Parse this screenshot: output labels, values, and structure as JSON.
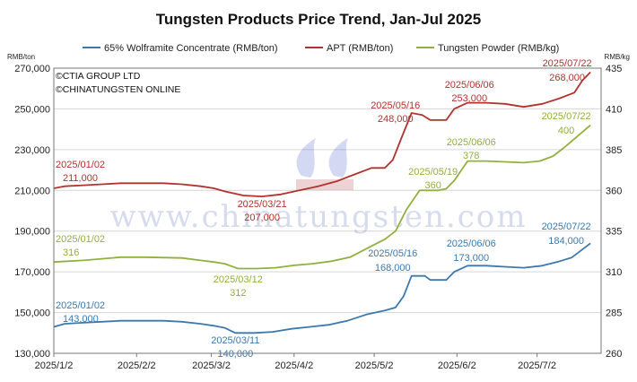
{
  "title": "Tungsten Products Price Trend, Jan-Jul 2025",
  "copyright": [
    "©CTIA GROUP LTD",
    "©CHINATUNGSTEN ONLINE"
  ],
  "watermark": "www.chinatungsten.com",
  "colors": {
    "wolframite": "#3d78ad",
    "apt": "#b2322f",
    "powder": "#92b03f",
    "grid": "#d6d6d6",
    "axis": "#777777"
  },
  "chart_data": {
    "type": "line",
    "title": "Tungsten Products Price Trend, Jan-Jul 2025",
    "x_ticks": [
      "2025/1/2",
      "2025/2/2",
      "2025/3/2",
      "2025/4/2",
      "2025/5/2",
      "2025/6/2",
      "2025/7/2"
    ],
    "y_left": {
      "unit": "RMB/ton",
      "lim": [
        130000,
        270000
      ],
      "ticks": [
        130000,
        150000,
        170000,
        190000,
        210000,
        230000,
        250000,
        270000
      ],
      "tick_labels": [
        "130,000",
        "150,000",
        "170,000",
        "190,000",
        "210,000",
        "230,000",
        "250,000",
        "270,000"
      ]
    },
    "y_right": {
      "unit": "RMB/kg",
      "lim": [
        260,
        435
      ],
      "ticks": [
        260,
        285,
        310,
        335,
        360,
        385,
        410,
        435
      ],
      "tick_labels": [
        "260",
        "285",
        "310",
        "335",
        "360",
        "385",
        "410",
        "435"
      ]
    },
    "legend": "top",
    "series": [
      {
        "name": "65% Wolframite Concentrate (RMB/ton)",
        "axis": "left",
        "color": "#3d78ad",
        "points": [
          [
            "2025/01/02",
            143000
          ],
          [
            "2025/01/06",
            144500
          ],
          [
            "2025/01/13",
            145000
          ],
          [
            "2025/01/20",
            145500
          ],
          [
            "2025/01/27",
            146000
          ],
          [
            "2025/02/05",
            146000
          ],
          [
            "2025/02/12",
            146000
          ],
          [
            "2025/02/19",
            145500
          ],
          [
            "2025/02/26",
            144500
          ],
          [
            "2025/03/03",
            143500
          ],
          [
            "2025/03/07",
            142500
          ],
          [
            "2025/03/11",
            140000
          ],
          [
            "2025/03/18",
            140000
          ],
          [
            "2025/03/25",
            140500
          ],
          [
            "2025/04/01",
            142000
          ],
          [
            "2025/04/08",
            143000
          ],
          [
            "2025/04/15",
            144000
          ],
          [
            "2025/04/22",
            146000
          ],
          [
            "2025/04/29",
            149000
          ],
          [
            "2025/05/06",
            151000
          ],
          [
            "2025/05/10",
            152500
          ],
          [
            "2025/05/13",
            158000
          ],
          [
            "2025/05/16",
            168000
          ],
          [
            "2025/05/21",
            168000
          ],
          [
            "2025/05/23",
            166000
          ],
          [
            "2025/05/29",
            166000
          ],
          [
            "2025/06/01",
            170000
          ],
          [
            "2025/06/06",
            173000
          ],
          [
            "2025/06/13",
            173000
          ],
          [
            "2025/06/20",
            172500
          ],
          [
            "2025/06/27",
            172000
          ],
          [
            "2025/07/04",
            173000
          ],
          [
            "2025/07/10",
            175000
          ],
          [
            "2025/07/15",
            177000
          ],
          [
            "2025/07/22",
            184000
          ]
        ]
      },
      {
        "name": "APT (RMB/ton)",
        "axis": "left",
        "color": "#b2322f",
        "points": [
          [
            "2025/01/02",
            211000
          ],
          [
            "2025/01/06",
            212000
          ],
          [
            "2025/01/13",
            212500
          ],
          [
            "2025/01/20",
            213000
          ],
          [
            "2025/01/27",
            213500
          ],
          [
            "2025/02/05",
            213500
          ],
          [
            "2025/02/12",
            213500
          ],
          [
            "2025/02/19",
            213000
          ],
          [
            "2025/02/26",
            212000
          ],
          [
            "2025/03/03",
            211000
          ],
          [
            "2025/03/07",
            209500
          ],
          [
            "2025/03/14",
            207500
          ],
          [
            "2025/03/21",
            207000
          ],
          [
            "2025/03/28",
            208000
          ],
          [
            "2025/04/04",
            210000
          ],
          [
            "2025/04/11",
            212000
          ],
          [
            "2025/04/18",
            214500
          ],
          [
            "2025/04/25",
            218000
          ],
          [
            "2025/05/01",
            221000
          ],
          [
            "2025/05/06",
            221000
          ],
          [
            "2025/05/09",
            225000
          ],
          [
            "2025/05/12",
            235000
          ],
          [
            "2025/05/16",
            248000
          ],
          [
            "2025/05/20",
            247000
          ],
          [
            "2025/05/23",
            244500
          ],
          [
            "2025/05/29",
            244500
          ],
          [
            "2025/06/01",
            250000
          ],
          [
            "2025/06/06",
            253000
          ],
          [
            "2025/06/13",
            253000
          ],
          [
            "2025/06/20",
            252500
          ],
          [
            "2025/06/27",
            251000
          ],
          [
            "2025/07/04",
            252500
          ],
          [
            "2025/07/10",
            255000
          ],
          [
            "2025/07/16",
            258000
          ],
          [
            "2025/07/19",
            264000
          ],
          [
            "2025/07/22",
            268000
          ]
        ]
      },
      {
        "name": "Tungsten Powder (RMB/kg)",
        "axis": "right",
        "color": "#92b03f",
        "points": [
          [
            "2025/01/02",
            316
          ],
          [
            "2025/01/13",
            317
          ],
          [
            "2025/01/20",
            318
          ],
          [
            "2025/01/27",
            319
          ],
          [
            "2025/02/05",
            319
          ],
          [
            "2025/02/19",
            318.5
          ],
          [
            "2025/02/26",
            317
          ],
          [
            "2025/03/03",
            316
          ],
          [
            "2025/03/07",
            315
          ],
          [
            "2025/03/12",
            312
          ],
          [
            "2025/03/19",
            312
          ],
          [
            "2025/03/26",
            312.5
          ],
          [
            "2025/04/02",
            314
          ],
          [
            "2025/04/09",
            315
          ],
          [
            "2025/04/16",
            316.5
          ],
          [
            "2025/04/23",
            319
          ],
          [
            "2025/04/30",
            325
          ],
          [
            "2025/05/06",
            330
          ],
          [
            "2025/05/10",
            335
          ],
          [
            "2025/05/14",
            348
          ],
          [
            "2025/05/19",
            360
          ],
          [
            "2025/05/26",
            360
          ],
          [
            "2025/05/29",
            361
          ],
          [
            "2025/06/01",
            366
          ],
          [
            "2025/06/06",
            378
          ],
          [
            "2025/06/13",
            378
          ],
          [
            "2025/06/20",
            377.5
          ],
          [
            "2025/06/27",
            377
          ],
          [
            "2025/07/03",
            378
          ],
          [
            "2025/07/08",
            381
          ],
          [
            "2025/07/12",
            386
          ],
          [
            "2025/07/17",
            393
          ],
          [
            "2025/07/22",
            400
          ]
        ]
      }
    ],
    "annotations": [
      {
        "series": "APT (RMB/ton)",
        "date": "2025/01/02",
        "value": "211,000"
      },
      {
        "series": "APT (RMB/ton)",
        "date": "2025/03/21",
        "value": "207,000"
      },
      {
        "series": "APT (RMB/ton)",
        "date": "2025/05/16",
        "value": "248,000"
      },
      {
        "series": "APT (RMB/ton)",
        "date": "2025/06/06",
        "value": "253,000"
      },
      {
        "series": "APT (RMB/ton)",
        "date": "2025/07/22",
        "value": "268,000"
      },
      {
        "series": "Tungsten Powder (RMB/kg)",
        "date": "2025/01/02",
        "value": "316"
      },
      {
        "series": "Tungsten Powder (RMB/kg)",
        "date": "2025/03/12",
        "value": "312"
      },
      {
        "series": "Tungsten Powder (RMB/kg)",
        "date": "2025/05/19",
        "value": "360"
      },
      {
        "series": "Tungsten Powder (RMB/kg)",
        "date": "2025/06/06",
        "value": "378"
      },
      {
        "series": "Tungsten Powder (RMB/kg)",
        "date": "2025/07/22",
        "value": "400"
      },
      {
        "series": "65% Wolframite Concentrate (RMB/ton)",
        "date": "2025/01/02",
        "value": "143,000"
      },
      {
        "series": "65% Wolframite Concentrate (RMB/ton)",
        "date": "2025/03/11",
        "value": "140,000"
      },
      {
        "series": "65% Wolframite Concentrate (RMB/ton)",
        "date": "2025/05/16",
        "value": "168,000"
      },
      {
        "series": "65% Wolframite Concentrate (RMB/ton)",
        "date": "2025/06/06",
        "value": "173,000"
      },
      {
        "series": "65% Wolframite Concentrate (RMB/ton)",
        "date": "2025/07/22",
        "value": "184,000"
      }
    ]
  }
}
